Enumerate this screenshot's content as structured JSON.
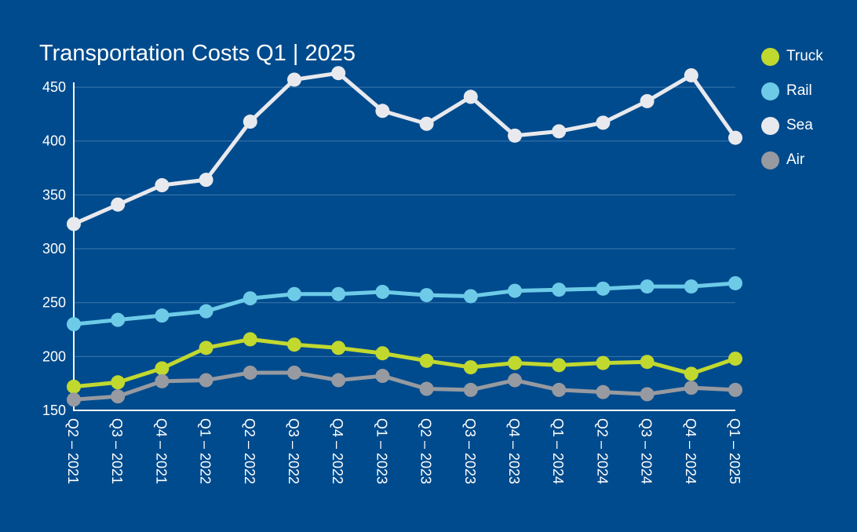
{
  "chart_data": {
    "type": "line",
    "title": "Transportation Costs Q1 | 2025",
    "categories": [
      "Q2 – 2021",
      "Q3 – 2021",
      "Q4 – 2021",
      "Q1 – 2022",
      "Q2 – 2022",
      "Q3 – 2022",
      "Q4 – 2022",
      "Q1 – 2023",
      "Q2 – 2023",
      "Q3 – 2023",
      "Q4 – 2023",
      "Q1 – 2024",
      "Q2 – 2024",
      "Q3 – 2024",
      "Q4 – 2024",
      "Q1 – 2025"
    ],
    "yticks": [
      150,
      200,
      250,
      300,
      350,
      400,
      450
    ],
    "ylim": [
      150,
      470
    ],
    "grid": true,
    "legend_position": "right",
    "series": [
      {
        "name": "Truck",
        "color": "#c1d82f",
        "values": [
          172,
          176,
          189,
          208,
          216,
          211,
          208,
          203,
          196,
          190,
          194,
          192,
          194,
          195,
          184,
          198
        ]
      },
      {
        "name": "Rail",
        "color": "#6dcbe8",
        "values": [
          230,
          234,
          238,
          242,
          254,
          258,
          258,
          260,
          257,
          256,
          261,
          262,
          263,
          265,
          265,
          268
        ]
      },
      {
        "name": "Sea",
        "color": "#e8e9ee",
        "values": [
          323,
          341,
          359,
          364,
          418,
          457,
          463,
          428,
          416,
          441,
          405,
          409,
          417,
          437,
          461,
          403
        ]
      },
      {
        "name": "Air",
        "color": "#979aa0",
        "values": [
          160,
          163,
          177,
          178,
          185,
          185,
          178,
          182,
          170,
          169,
          178,
          169,
          167,
          165,
          171,
          169
        ]
      }
    ]
  }
}
